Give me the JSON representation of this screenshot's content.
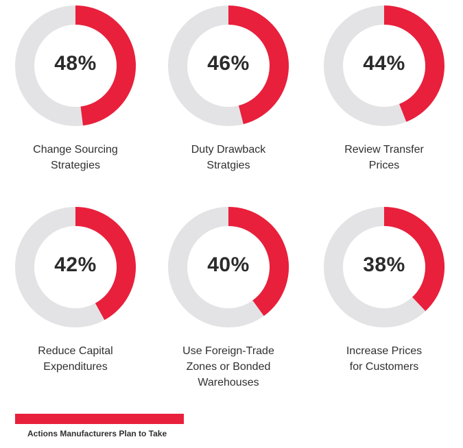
{
  "colors": {
    "accent": "#e8203c",
    "track": "#e3e3e5",
    "text": "#2f2f2f"
  },
  "chart_data": {
    "type": "donut",
    "categories": [
      "Change Sourcing Strategies",
      "Duty Drawback Stratgies",
      "Review Transfer Prices",
      "Reduce Capital Expenditures",
      "Use Foreign-Trade Zones or Bonded Warehouses",
      "Increase Prices for Customers"
    ],
    "category_lines": [
      [
        "Change Sourcing",
        "Strategies"
      ],
      [
        "Duty Drawback",
        "Stratgies"
      ],
      [
        "Review Transfer",
        "Prices"
      ],
      [
        "Reduce Capital",
        "Expenditures"
      ],
      [
        "Use Foreign-Trade",
        "Zones or Bonded",
        "Warehouses"
      ],
      [
        "Increase Prices",
        "for Customers"
      ]
    ],
    "values": [
      48,
      46,
      44,
      42,
      40,
      38
    ],
    "value_labels": [
      "48%",
      "46%",
      "44%",
      "42%",
      "40%",
      "38%"
    ],
    "unit": "%",
    "series": [
      {
        "name": "Actions Manufacturers Plan to Take",
        "values": [
          48,
          46,
          44,
          42,
          40,
          38
        ]
      }
    ],
    "legend": {
      "label": "Actions Manufacturers Plan to Take",
      "placement": "bottom-left"
    },
    "title": "",
    "layout": "grid-2x3"
  }
}
